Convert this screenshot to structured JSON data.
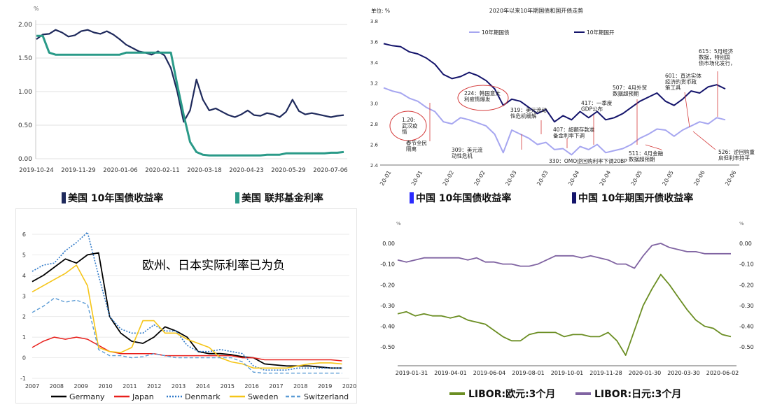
{
  "panel_tl": {
    "unit": "%",
    "legend": [
      {
        "label": "美国 10年国债收益率",
        "color": "#1f2a5c"
      },
      {
        "label": "美国 联邦基金利率",
        "color": "#2a9a88"
      }
    ]
  },
  "panel_tr": {
    "unit_label": "单位: %",
    "title": "2020年以来10年期国债和国开债走势",
    "legend": [
      {
        "label": "中国 10年国债收益率",
        "color": "#2b2bff"
      },
      {
        "label": "中国 10年期国开债收益率",
        "color": "#14146b"
      }
    ],
    "annotations": [
      {
        "text": "1.20:\n武汉疫\n情"
      },
      {
        "text": "春节全民\n隔离"
      },
      {
        "text": "224：韩国意大\n利疫情爆发"
      },
      {
        "text": "309：美元流\n动性危机"
      },
      {
        "text": "319：美元流动\n性危机缓解"
      },
      {
        "text": "330：OMO逆回购利率下调20BP"
      },
      {
        "text": "407：超额存款准\n备金利率下调"
      },
      {
        "text": "417：一季度\nGDP公布"
      },
      {
        "text": "507：4月外贸\n数据超预期"
      },
      {
        "text": "511：4月金融\n数据超预期"
      },
      {
        "text": "526：逆回购重\n启但利率持平"
      },
      {
        "text": "601：直达实体\n经济的货币政\n策工具"
      },
      {
        "text": "615：5月经济\n数据，特别国\n债市场化发行，"
      }
    ]
  },
  "panel_bl": {
    "annotation": "欧州、日本实际利率已为负",
    "legend": [
      {
        "label": "Germany",
        "color": "#000000",
        "dash": "solid"
      },
      {
        "label": "Japan",
        "color": "#e8201c",
        "dash": "solid"
      },
      {
        "label": "Denmark",
        "color": "#2d78c8",
        "dash": "dotted"
      },
      {
        "label": "Sweden",
        "color": "#f5c518",
        "dash": "solid"
      },
      {
        "label": "Switzerland",
        "color": "#5b9bd5",
        "dash": "dashed"
      }
    ]
  },
  "panel_br": {
    "unit_left": "%",
    "unit_right": "%",
    "legend": [
      {
        "label": "LIBOR:欧元:3个月",
        "color": "#6b8e23"
      },
      {
        "label": "LIBOR:日元:3个月",
        "color": "#8064a2"
      }
    ]
  },
  "chart_data": [
    {
      "id": "us_rates",
      "type": "line",
      "x_labels": [
        "2019-10-24",
        "2019-11-29",
        "2020-01-06",
        "2020-02-11",
        "2020-03-18",
        "2020-04-23",
        "2020-05-29",
        "2020-07-06"
      ],
      "ylim": [
        0,
        2.0
      ],
      "y_ticks": [
        "0.00",
        "0.50",
        "1.00",
        "1.50",
        "2.00"
      ],
      "series": [
        {
          "name": "美国 10年国债收益率",
          "values": [
            1.78,
            1.85,
            1.86,
            1.92,
            1.88,
            1.82,
            1.84,
            1.9,
            1.92,
            1.88,
            1.86,
            1.9,
            1.85,
            1.78,
            1.7,
            1.65,
            1.6,
            1.58,
            1.55,
            1.6,
            1.54,
            1.35,
            1.0,
            0.55,
            0.72,
            1.18,
            0.88,
            0.72,
            0.75,
            0.7,
            0.65,
            0.62,
            0.66,
            0.72,
            0.65,
            0.64,
            0.68,
            0.66,
            0.62,
            0.7,
            0.88,
            0.71,
            0.66,
            0.68,
            0.66,
            0.64,
            0.62,
            0.64,
            0.65
          ]
        },
        {
          "name": "美国 联邦基金利率",
          "values": [
            1.83,
            1.83,
            1.58,
            1.55,
            1.55,
            1.55,
            1.55,
            1.55,
            1.55,
            1.55,
            1.55,
            1.55,
            1.55,
            1.55,
            1.58,
            1.58,
            1.58,
            1.58,
            1.58,
            1.58,
            1.58,
            1.58,
            1.1,
            0.65,
            0.25,
            0.1,
            0.06,
            0.05,
            0.05,
            0.05,
            0.05,
            0.05,
            0.05,
            0.05,
            0.05,
            0.05,
            0.06,
            0.06,
            0.06,
            0.08,
            0.08,
            0.08,
            0.08,
            0.08,
            0.08,
            0.08,
            0.09,
            0.09,
            0.1
          ]
        }
      ]
    },
    {
      "id": "china_rates",
      "type": "line",
      "title": "2020年以来10年期国债和国开债走势",
      "x_labels": [
        "20-01",
        "20-01",
        "20-02",
        "20-02",
        "20-03",
        "20-03",
        "20-04",
        "20-04",
        "20-05",
        "20-05",
        "20-06",
        "20-06"
      ],
      "ylim": [
        2.4,
        3.8
      ],
      "y_ticks": [
        "2.4",
        "2.6",
        "2.8",
        "3.0",
        "3.2",
        "3.4",
        "3.6",
        "3.8"
      ],
      "series": [
        {
          "name": "10年期国债",
          "values": [
            3.15,
            3.12,
            3.1,
            3.05,
            3.02,
            2.96,
            2.92,
            2.82,
            2.8,
            2.86,
            2.84,
            2.81,
            2.78,
            2.7,
            2.52,
            2.74,
            2.7,
            2.66,
            2.6,
            2.62,
            2.55,
            2.56,
            2.5,
            2.58,
            2.55,
            2.6,
            2.52,
            2.54,
            2.56,
            2.6,
            2.66,
            2.7,
            2.75,
            2.74,
            2.68,
            2.74,
            2.78,
            2.82,
            2.8,
            2.86,
            2.84
          ]
        },
        {
          "name": "10年期国开",
          "values": [
            3.58,
            3.56,
            3.55,
            3.5,
            3.48,
            3.44,
            3.38,
            3.28,
            3.24,
            3.26,
            3.3,
            3.27,
            3.22,
            3.14,
            2.98,
            3.04,
            3.02,
            2.96,
            2.9,
            2.94,
            2.82,
            2.88,
            2.84,
            2.92,
            2.86,
            2.92,
            2.84,
            2.86,
            2.9,
            2.96,
            3.02,
            3.06,
            3.1,
            3.02,
            2.98,
            3.04,
            3.12,
            3.1,
            3.16,
            3.18,
            3.14
          ]
        }
      ]
    },
    {
      "id": "real_rates",
      "type": "line",
      "x_labels": [
        "2007",
        "2008",
        "2009",
        "2010",
        "2011",
        "2012",
        "2013",
        "2014",
        "2015",
        "2016",
        "2017",
        "2018",
        "2019",
        "2020"
      ],
      "ylim": [
        -1,
        6
      ],
      "y_ticks": [
        "-1",
        "0",
        "1",
        "2",
        "3",
        "4",
        "5",
        "6"
      ],
      "series": [
        {
          "name": "Germany",
          "values": [
            3.7,
            4.0,
            4.4,
            4.8,
            4.6,
            5.0,
            5.1,
            2.0,
            1.2,
            0.8,
            0.7,
            1.0,
            1.5,
            1.3,
            1.0,
            0.3,
            0.2,
            0.2,
            0.15,
            0.05,
            0.0,
            -0.3,
            -0.35,
            -0.4,
            -0.4,
            -0.4,
            -0.45,
            -0.5,
            -0.5
          ]
        },
        {
          "name": "Japan",
          "values": [
            0.5,
            0.8,
            1.0,
            0.9,
            1.0,
            0.9,
            0.6,
            0.3,
            0.2,
            0.2,
            0.2,
            0.2,
            0.1,
            0.1,
            0.1,
            0.1,
            0.1,
            0.1,
            0.1,
            0.0,
            0.0,
            -0.1,
            -0.1,
            -0.1,
            -0.1,
            -0.1,
            -0.1,
            -0.1,
            -0.15
          ]
        },
        {
          "name": "Denmark",
          "values": [
            4.2,
            4.5,
            4.6,
            5.2,
            5.6,
            6.1,
            4.0,
            2.0,
            1.4,
            1.2,
            1.2,
            1.6,
            1.3,
            1.3,
            0.6,
            0.3,
            0.3,
            0.4,
            0.3,
            0.2,
            -0.4,
            -0.6,
            -0.6,
            -0.6,
            -0.5,
            -0.5,
            -0.5,
            -0.5,
            -0.5
          ]
        },
        {
          "name": "Sweden",
          "values": [
            3.2,
            3.5,
            3.8,
            4.1,
            4.5,
            3.5,
            0.5,
            0.3,
            0.25,
            0.5,
            1.8,
            1.8,
            1.2,
            1.2,
            0.9,
            0.7,
            0.5,
            0.0,
            -0.2,
            -0.3,
            -0.5,
            -0.5,
            -0.5,
            -0.5,
            -0.4,
            -0.3,
            -0.25,
            -0.25,
            -0.3
          ]
        },
        {
          "name": "Switzerland",
          "values": [
            2.2,
            2.5,
            2.9,
            2.7,
            2.8,
            2.6,
            0.4,
            0.1,
            0.1,
            0.0,
            0.05,
            0.2,
            0.1,
            0.0,
            0.0,
            0.0,
            0.0,
            0.0,
            0.0,
            -0.2,
            -0.7,
            -0.75,
            -0.75,
            -0.75,
            -0.75,
            -0.75,
            -0.75,
            -0.75,
            -0.75
          ]
        }
      ]
    },
    {
      "id": "libor",
      "type": "line",
      "x_labels": [
        "2019-01-31",
        "2019-04-01",
        "2019-06-04",
        "2019-08-01",
        "2019-10-01",
        "2019-11-28",
        "2020-01-30",
        "2020-03-30",
        "2020-06-02"
      ],
      "ylim_left": [
        -0.55,
        0.0
      ],
      "y_ticks_left": [
        "-0.50",
        "-0.40",
        "-0.30",
        "-0.20",
        "-0.10",
        "0.00"
      ],
      "ylim_right": [
        -0.55,
        0.0
      ],
      "y_ticks_right": [
        "-0.50",
        "-0.40",
        "-0.30",
        "-0.20",
        "-0.10",
        "0.00"
      ],
      "series": [
        {
          "name": "LIBOR:欧元:3个月",
          "values": [
            -0.34,
            -0.33,
            -0.35,
            -0.34,
            -0.35,
            -0.35,
            -0.36,
            -0.35,
            -0.37,
            -0.38,
            -0.39,
            -0.42,
            -0.45,
            -0.47,
            -0.47,
            -0.44,
            -0.43,
            -0.43,
            -0.43,
            -0.45,
            -0.44,
            -0.44,
            -0.45,
            -0.45,
            -0.43,
            -0.47,
            -0.54,
            -0.42,
            -0.3,
            -0.22,
            -0.15,
            -0.2,
            -0.26,
            -0.32,
            -0.37,
            -0.4,
            -0.41,
            -0.44,
            -0.45
          ]
        },
        {
          "name": "LIBOR:日元:3个月",
          "values": [
            -0.08,
            -0.09,
            -0.08,
            -0.07,
            -0.07,
            -0.07,
            -0.07,
            -0.07,
            -0.08,
            -0.07,
            -0.09,
            -0.09,
            -0.1,
            -0.1,
            -0.11,
            -0.11,
            -0.1,
            -0.08,
            -0.06,
            -0.06,
            -0.06,
            -0.07,
            -0.06,
            -0.07,
            -0.08,
            -0.1,
            -0.1,
            -0.12,
            -0.06,
            -0.01,
            0.0,
            -0.02,
            -0.03,
            -0.04,
            -0.04,
            -0.05,
            -0.05,
            -0.05,
            -0.05
          ]
        }
      ]
    }
  ]
}
